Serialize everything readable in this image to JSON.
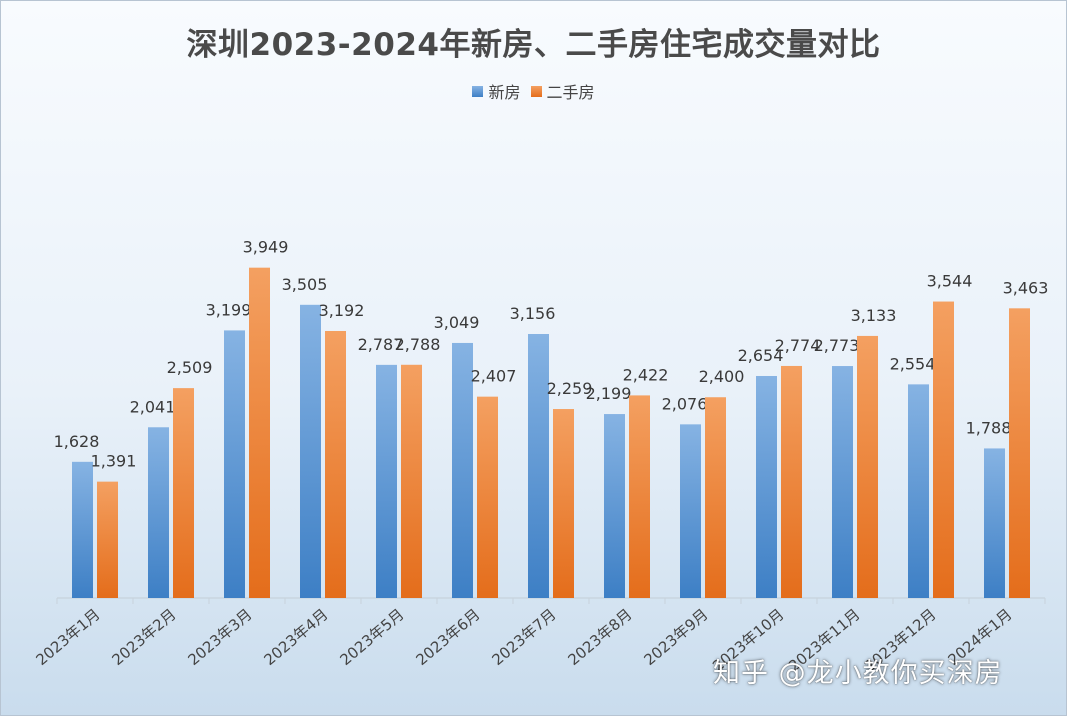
{
  "chart_data": {
    "type": "bar",
    "title": "深圳2023-2024年新房、二手房住宅成交量对比",
    "categories": [
      "2023年1月",
      "2023年2月",
      "2023年3月",
      "2023年4月",
      "2023年5月",
      "2023年6月",
      "2023年7月",
      "2023年8月",
      "2023年9月",
      "2023年10月",
      "2023年11月",
      "2023年12月",
      "2024年1月"
    ],
    "series": [
      {
        "name": "新房",
        "values": [
          1628,
          2041,
          3199,
          3505,
          2787,
          3049,
          3156,
          2199,
          2076,
          2654,
          2773,
          2554,
          1788
        ],
        "color_top": "#86b3e3",
        "color_bottom": "#3d7fc5"
      },
      {
        "name": "二手房",
        "values": [
          1391,
          2509,
          3949,
          3192,
          2788,
          2407,
          2259,
          2422,
          2400,
          2774,
          3133,
          3544,
          3463
        ],
        "color_top": "#f4a061",
        "color_bottom": "#e46d1b"
      }
    ],
    "value_labels": {
      "新房": [
        "1,628",
        "2,041",
        "3,199",
        "3,505",
        "2,787",
        "3,049",
        "3,156",
        "2,199",
        "2,076",
        "2,654",
        "2,773",
        "2,554",
        "1,788"
      ],
      "二手房": [
        "1,391",
        "2,509",
        "3,949",
        "3,192",
        "2,788",
        "2,407",
        "2,259",
        "2,422",
        "2,400",
        "2,774",
        "3,133",
        "3,544",
        "3,463"
      ]
    },
    "ylim": [
      0,
      4000
    ],
    "grid": false,
    "legend_position": "top-center",
    "xlabel": "",
    "ylabel": ""
  },
  "watermark": "知乎 @龙小教你买深房"
}
